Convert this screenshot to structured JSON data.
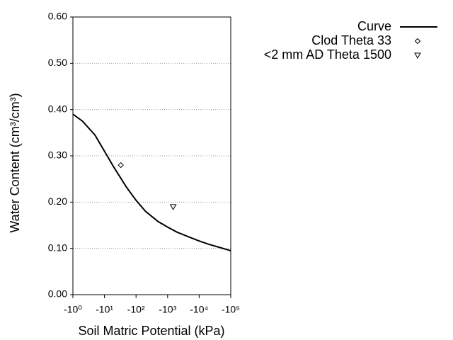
{
  "chart_data": {
    "type": "line",
    "x_label": "Soil Matric Potential (kPa)",
    "y_label": "Water Content (cm³/cm³)",
    "xscale": "log",
    "xlim": [
      -1,
      -100000
    ],
    "xticks": [
      {
        "value": -1,
        "label": "-10⁰"
      },
      {
        "value": -10,
        "label": "-10¹"
      },
      {
        "value": -100,
        "label": "-10²"
      },
      {
        "value": -1000,
        "label": "-10³"
      },
      {
        "value": -10000,
        "label": "-10⁴"
      },
      {
        "value": -100000,
        "label": "-10⁵"
      }
    ],
    "ylim": [
      0,
      0.6
    ],
    "yticks": [
      {
        "value": 0,
        "label": "0.00"
      },
      {
        "value": 0.1,
        "label": "0.10"
      },
      {
        "value": 0.2,
        "label": "0.20"
      },
      {
        "value": 0.3,
        "label": "0.30"
      },
      {
        "value": 0.4,
        "label": "0.40"
      },
      {
        "value": 0.5,
        "label": "0.50"
      },
      {
        "value": 0.6,
        "label": "0.60"
      }
    ],
    "grid": true,
    "legend": "top-right",
    "series": [
      {
        "name": "Curve",
        "color": "#000000",
        "marker": "line",
        "x": [
          -1,
          -2,
          -5,
          -10,
          -20,
          -50,
          -100,
          -200,
          -500,
          -1000,
          -2000,
          -5000,
          -10000,
          -20000,
          -50000,
          -100000
        ],
        "values": [
          0.39,
          0.375,
          0.345,
          0.31,
          0.275,
          0.232,
          0.204,
          0.18,
          0.158,
          0.146,
          0.135,
          0.124,
          0.116,
          0.109,
          0.101,
          0.095
        ]
      },
      {
        "name": "Clod Theta 33",
        "color": "#000000",
        "marker": "diamond",
        "x": [
          -33
        ],
        "values": [
          0.28
        ]
      },
      {
        "name": "<2 mm AD Theta 1500",
        "color": "#000000",
        "marker": "triangle-down",
        "x": [
          -1500
        ],
        "values": [
          0.19
        ]
      }
    ]
  }
}
